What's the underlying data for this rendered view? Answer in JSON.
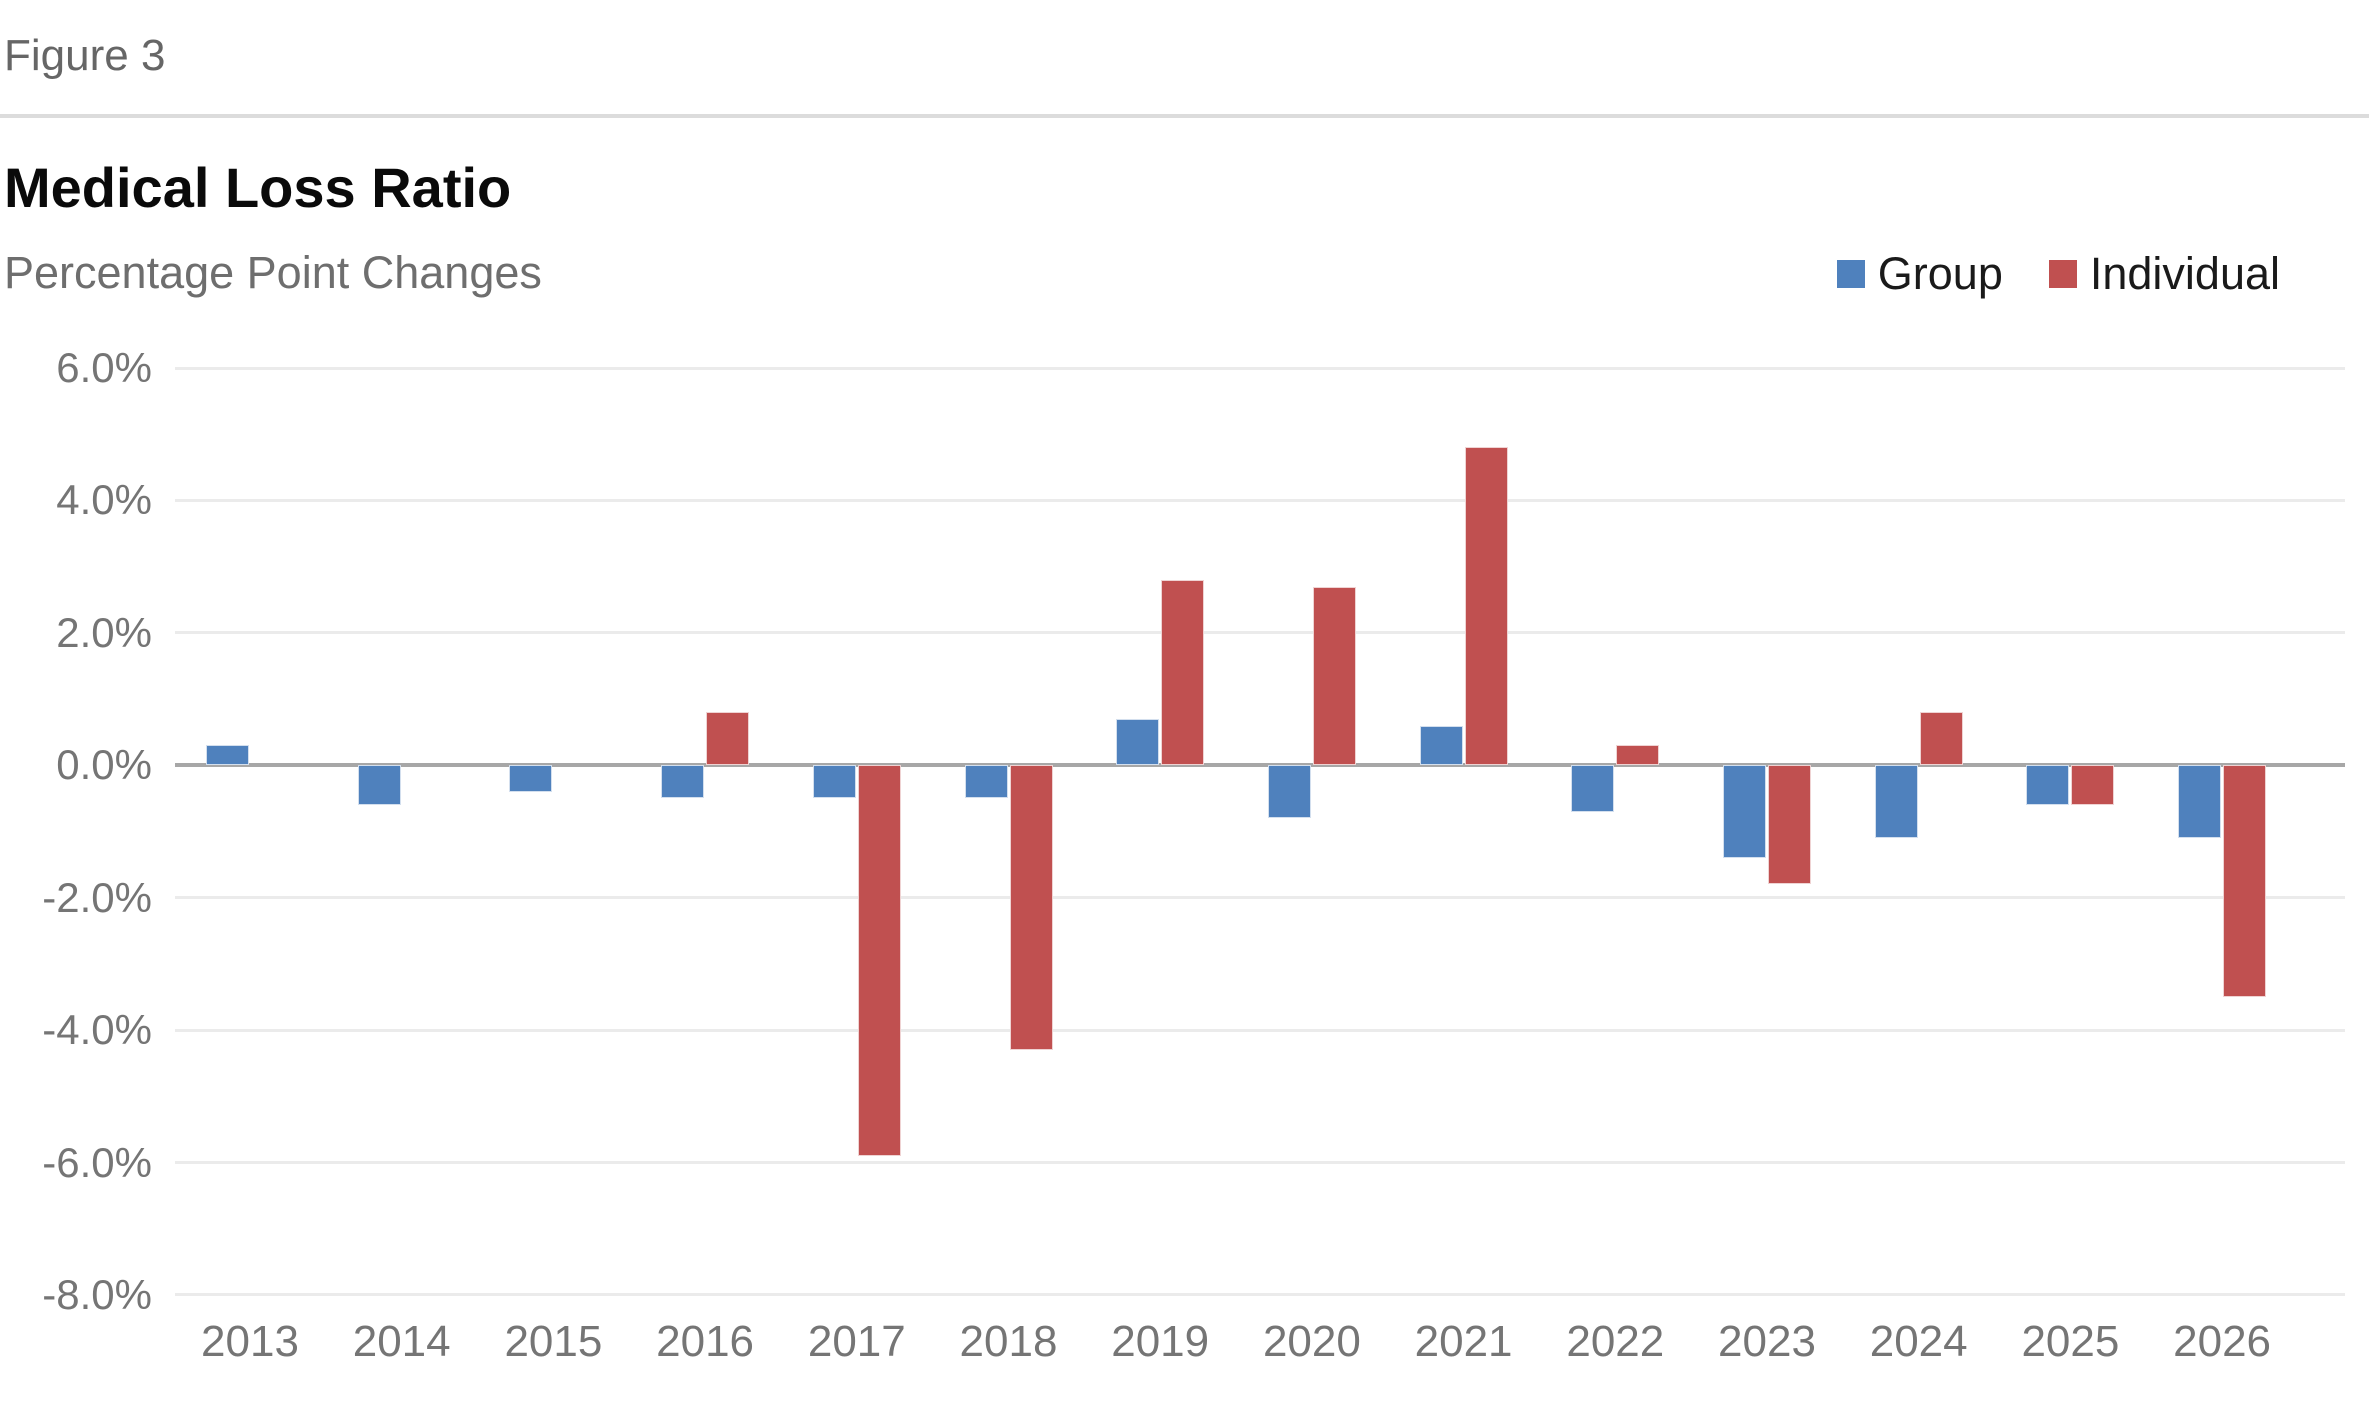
{
  "figure_label": "Figure 3",
  "header": {
    "title": "Medical Loss Ratio",
    "subtitle": "Percentage Point Changes"
  },
  "legend": {
    "items": [
      {
        "label": "Group",
        "color": "#4f81bd"
      },
      {
        "label": "Individual",
        "color": "#c05050"
      }
    ]
  },
  "chart_data": {
    "type": "bar",
    "title": "Medical Loss Ratio",
    "subtitle": "Percentage Point Changes",
    "categories": [
      "2013",
      "2014",
      "2015",
      "2016",
      "2017",
      "2018",
      "2019",
      "2020",
      "2021",
      "2022",
      "2023",
      "2024",
      "2025",
      "2026"
    ],
    "series": [
      {
        "name": "Group",
        "color": "#4f81bd",
        "values": [
          0.3,
          -0.6,
          -0.4,
          -0.5,
          -0.5,
          -0.5,
          0.7,
          -0.8,
          0.6,
          -0.7,
          -1.4,
          -1.1,
          -0.6,
          -1.1
        ]
      },
      {
        "name": "Individual",
        "color": "#c05050",
        "values": [
          0,
          0,
          0,
          0.8,
          -5.9,
          -4.3,
          2.8,
          2.7,
          4.8,
          0.3,
          -1.8,
          0.8,
          -0.6,
          -3.5
        ]
      }
    ],
    "xlabel": "",
    "ylabel": "",
    "ylim": [
      -8,
      6
    ],
    "y_tick_labels": [
      "6.0%",
      "4.0%",
      "2.0%",
      "0.0%",
      "-2.0%",
      "-4.0%",
      "-6.0%",
      "-8.0%"
    ],
    "y_tick_values": [
      6,
      4,
      2,
      0,
      -2,
      -4,
      -6,
      -8
    ],
    "grid": true,
    "legend_position": "top-right",
    "zero_line_color": "#a7a7a7"
  }
}
